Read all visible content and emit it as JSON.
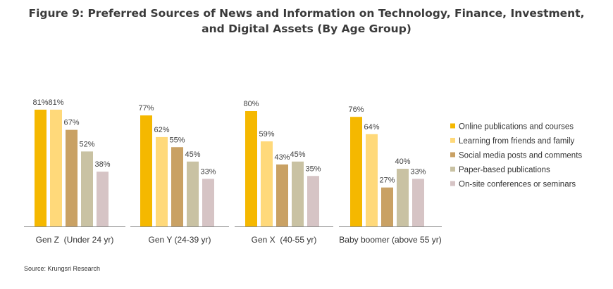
{
  "title_lines": [
    "Figure 9: Preferred Sources of News and Information on Technology, Finance, Investment,",
    "and Digital Assets (By Age Group)"
  ],
  "source": "Source: Krungsri Research",
  "chart_data": {
    "type": "bar",
    "title": "Figure 9: Preferred Sources of News and Information on Technology, Finance, Investment, and Digital Assets (By Age Group)",
    "categories": [
      "Gen Z  (Under 24 yr)",
      "Gen Y (24-39 yr)",
      "Gen X  (40-55 yr)",
      "Baby boomer (above 55 yr)"
    ],
    "series": [
      {
        "name": "Online publications and courses",
        "color": "#F5B800",
        "values": [
          81,
          77,
          80,
          76
        ]
      },
      {
        "name": "Learning from friends and family",
        "color": "#FFD97A",
        "values": [
          81,
          62,
          59,
          64
        ]
      },
      {
        "name": "Social media posts and comments",
        "color": "#C9A164",
        "values": [
          67,
          55,
          43,
          27
        ]
      },
      {
        "name": "Paper-based publications",
        "color": "#C9C2A3",
        "values": [
          52,
          45,
          45,
          40
        ]
      },
      {
        "name": "On-site conferences or seminars",
        "color": "#D6C4C5",
        "values": [
          38,
          33,
          35,
          33
        ]
      }
    ],
    "value_suffix": "%",
    "ylim": [
      0,
      100
    ],
    "grid": false,
    "legend": "right"
  }
}
